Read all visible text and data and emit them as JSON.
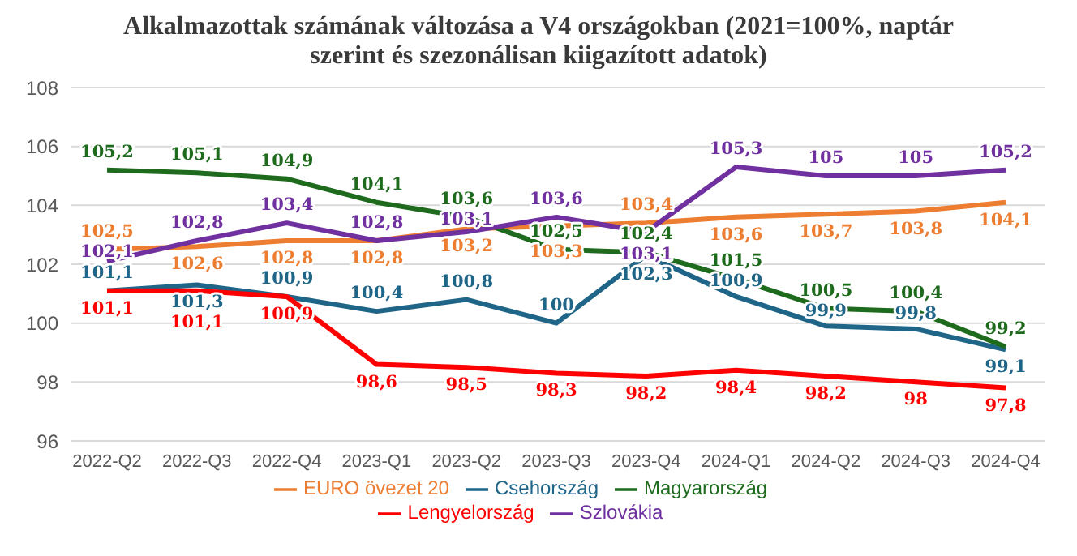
{
  "chart_data": {
    "type": "line",
    "title": "Alkalmazottak számának változása a V4 országokban (2021=100%, naptár szerint és szezonálisan kiigazított adatok)",
    "categories": [
      "2022-Q2",
      "2022-Q3",
      "2022-Q4",
      "2023-Q1",
      "2023-Q2",
      "2023-Q3",
      "2023-Q4",
      "2024-Q1",
      "2024-Q2",
      "2024-Q3",
      "2024-Q4"
    ],
    "series": [
      {
        "name": "EURO övezet 20",
        "color": "#ed7d31",
        "values": [
          102.5,
          102.6,
          102.8,
          102.8,
          103.2,
          103.3,
          103.4,
          103.6,
          103.7,
          103.8,
          104.1
        ],
        "value_labels": [
          "102,5",
          "102,6",
          "102,8",
          "102,8",
          "103,2",
          "103,3",
          "103,4",
          "103,6",
          "103,7",
          "103,8",
          "104,1"
        ]
      },
      {
        "name": "Csehország",
        "color": "#1f6587",
        "values": [
          101.1,
          101.3,
          100.9,
          100.4,
          100.8,
          100,
          102.3,
          100.9,
          99.9,
          99.8,
          99.1
        ],
        "value_labels": [
          "101,1",
          "101,3",
          "100,9",
          "100,4",
          "100,8",
          "100",
          "102,3",
          "100,9",
          "99,9",
          "99,8",
          "99,1"
        ]
      },
      {
        "name": "Magyarország",
        "color": "#1e6b1e",
        "values": [
          105.2,
          105.1,
          104.9,
          104.1,
          103.6,
          102.5,
          102.4,
          101.5,
          100.5,
          100.4,
          99.2
        ],
        "value_labels": [
          "105,2",
          "105,1",
          "104,9",
          "104,1",
          "103,6",
          "102,5",
          "102,4",
          "101,5",
          "100,5",
          "100,4",
          "99,2"
        ]
      },
      {
        "name": "Lengyelország",
        "color": "#ff0000",
        "values": [
          101.1,
          101.1,
          100.9,
          98.6,
          98.5,
          98.3,
          98.2,
          98.4,
          98.2,
          98,
          97.8
        ],
        "value_labels": [
          "101,1",
          "101,1",
          "100,9",
          "98,6",
          "98,5",
          "98,3",
          "98,2",
          "98,4",
          "98,2",
          "98",
          "97,8"
        ]
      },
      {
        "name": "Szlovákia",
        "color": "#7030a0",
        "values": [
          102.1,
          102.8,
          103.4,
          102.8,
          103.1,
          103.6,
          103.1,
          105.3,
          105,
          105,
          105.2
        ],
        "value_labels": [
          "102,1",
          "102,8",
          "103,4",
          "102,8",
          "103,1",
          "103,6",
          "103,1",
          "105,3",
          "105",
          "105",
          "105,2"
        ]
      }
    ],
    "ylim": [
      96,
      108
    ],
    "yticks": [
      96,
      98,
      100,
      102,
      104,
      106,
      108
    ],
    "grid": "y",
    "legend": "bottom",
    "marker": "none",
    "line_style": "solid"
  }
}
